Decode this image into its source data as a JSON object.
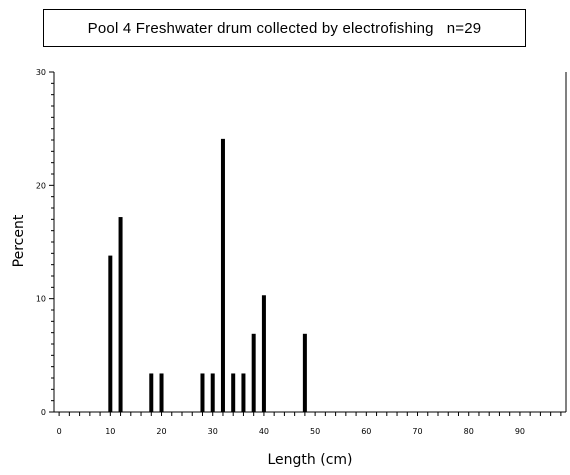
{
  "title": "Pool 4 Freshwater drum collected by electrofishing   n=29",
  "chart_data": {
    "type": "bar",
    "title": "Pool 4 Freshwater drum collected by electrofishing   n=29",
    "xlabel": "Length (cm)",
    "ylabel": "Percent",
    "xlim": [
      -1,
      99
    ],
    "ylim": [
      0,
      30
    ],
    "x_ticks": [
      0,
      10,
      20,
      30,
      40,
      50,
      60,
      70,
      80,
      90
    ],
    "y_ticks": [
      0,
      10,
      20,
      30
    ],
    "series": [
      {
        "x": [
          10,
          12,
          18,
          20,
          28,
          30,
          32,
          34,
          36,
          38,
          40,
          48
        ],
        "values": [
          13.8,
          17.2,
          3.4,
          3.4,
          3.4,
          3.4,
          24.1,
          3.4,
          3.4,
          6.9,
          10.3,
          6.9
        ]
      }
    ],
    "grid": false,
    "legend": "none"
  }
}
